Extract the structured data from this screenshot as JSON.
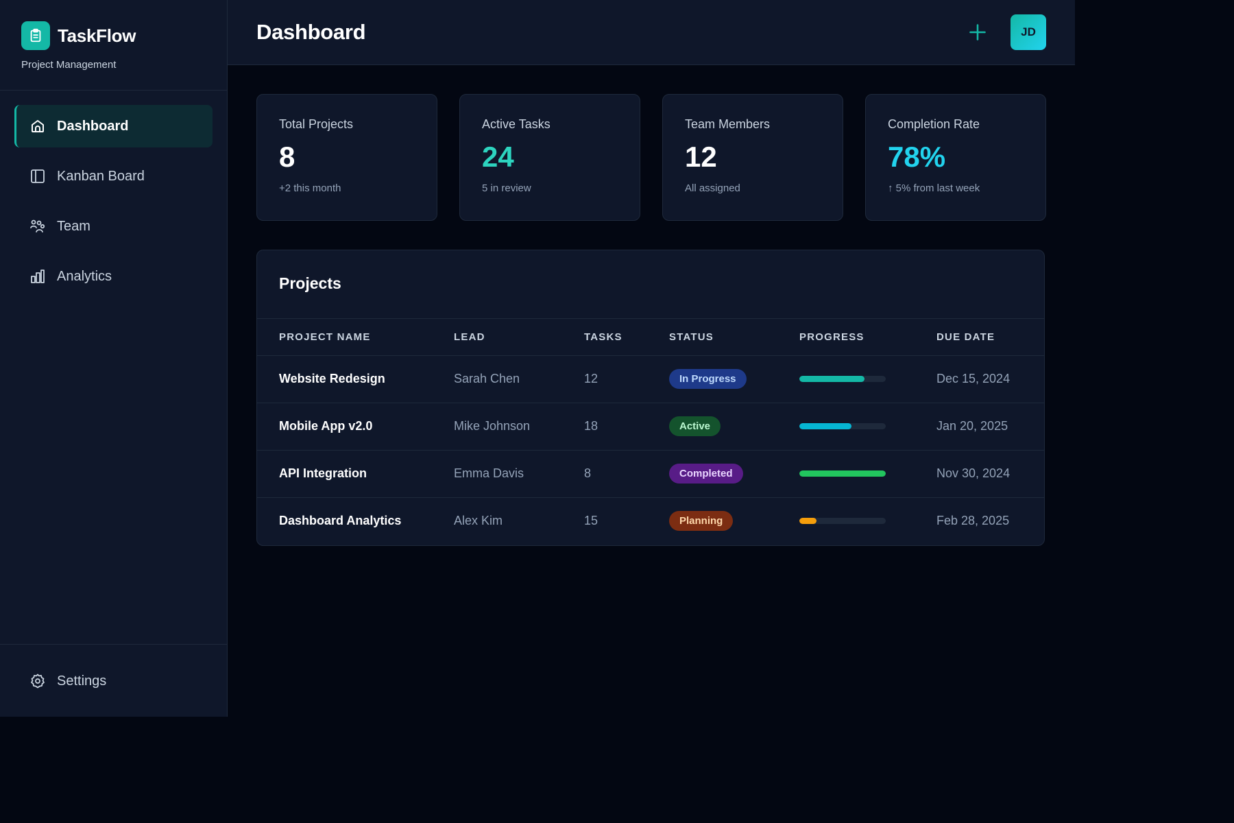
{
  "brand": {
    "name": "TaskFlow",
    "subtitle": "Project Management",
    "logo_icon": "clipboard-icon"
  },
  "nav": {
    "items": [
      {
        "label": "Dashboard",
        "icon": "home-icon",
        "active": true
      },
      {
        "label": "Kanban Board",
        "icon": "kanban-icon",
        "active": false
      },
      {
        "label": "Team",
        "icon": "team-icon",
        "active": false
      },
      {
        "label": "Analytics",
        "icon": "bar-chart-icon",
        "active": false
      }
    ],
    "settings": {
      "label": "Settings",
      "icon": "gear-icon"
    }
  },
  "header": {
    "title": "Dashboard",
    "add_icon": "plus-icon",
    "avatar_initials": "JD"
  },
  "stats": [
    {
      "label": "Total Projects",
      "value": "8",
      "sub": "+2 this month",
      "color": "#ffffff"
    },
    {
      "label": "Active Tasks",
      "value": "24",
      "sub": "5 in review",
      "color": "#2dd4bf"
    },
    {
      "label": "Team Members",
      "value": "12",
      "sub": "All assigned",
      "color": "#ffffff"
    },
    {
      "label": "Completion Rate",
      "value": "78%",
      "sub": "↑ 5% from last week",
      "color": "#22d3ee"
    }
  ],
  "projects": {
    "title": "Projects",
    "columns": [
      "PROJECT NAME",
      "LEAD",
      "TASKS",
      "STATUS",
      "PROGRESS",
      "DUE DATE"
    ],
    "rows": [
      {
        "name": "Website Redesign",
        "lead": "Sarah Chen",
        "tasks": "12",
        "status": "In Progress",
        "status_bg": "#1e3a8a",
        "status_fg": "#bfdbfe",
        "progress": 0.75,
        "progress_color": "#14b8a6",
        "due": "Dec 15, 2024"
      },
      {
        "name": "Mobile App v2.0",
        "lead": "Mike Johnson",
        "tasks": "18",
        "status": "Active",
        "status_bg": "#14532d",
        "status_fg": "#bbf7d0",
        "progress": 0.6,
        "progress_color": "#06b6d4",
        "due": "Jan 20, 2025"
      },
      {
        "name": "API Integration",
        "lead": "Emma Davis",
        "tasks": "8",
        "status": "Completed",
        "status_bg": "#581c87",
        "status_fg": "#e9d5ff",
        "progress": 1.0,
        "progress_color": "#22c55e",
        "due": "Nov 30, 2024"
      },
      {
        "name": "Dashboard Analytics",
        "lead": "Alex Kim",
        "tasks": "15",
        "status": "Planning",
        "status_bg": "#7c2d12",
        "status_fg": "#fed7aa",
        "progress": 0.2,
        "progress_color": "#f59e0b",
        "due": "Feb 28, 2025"
      }
    ]
  }
}
